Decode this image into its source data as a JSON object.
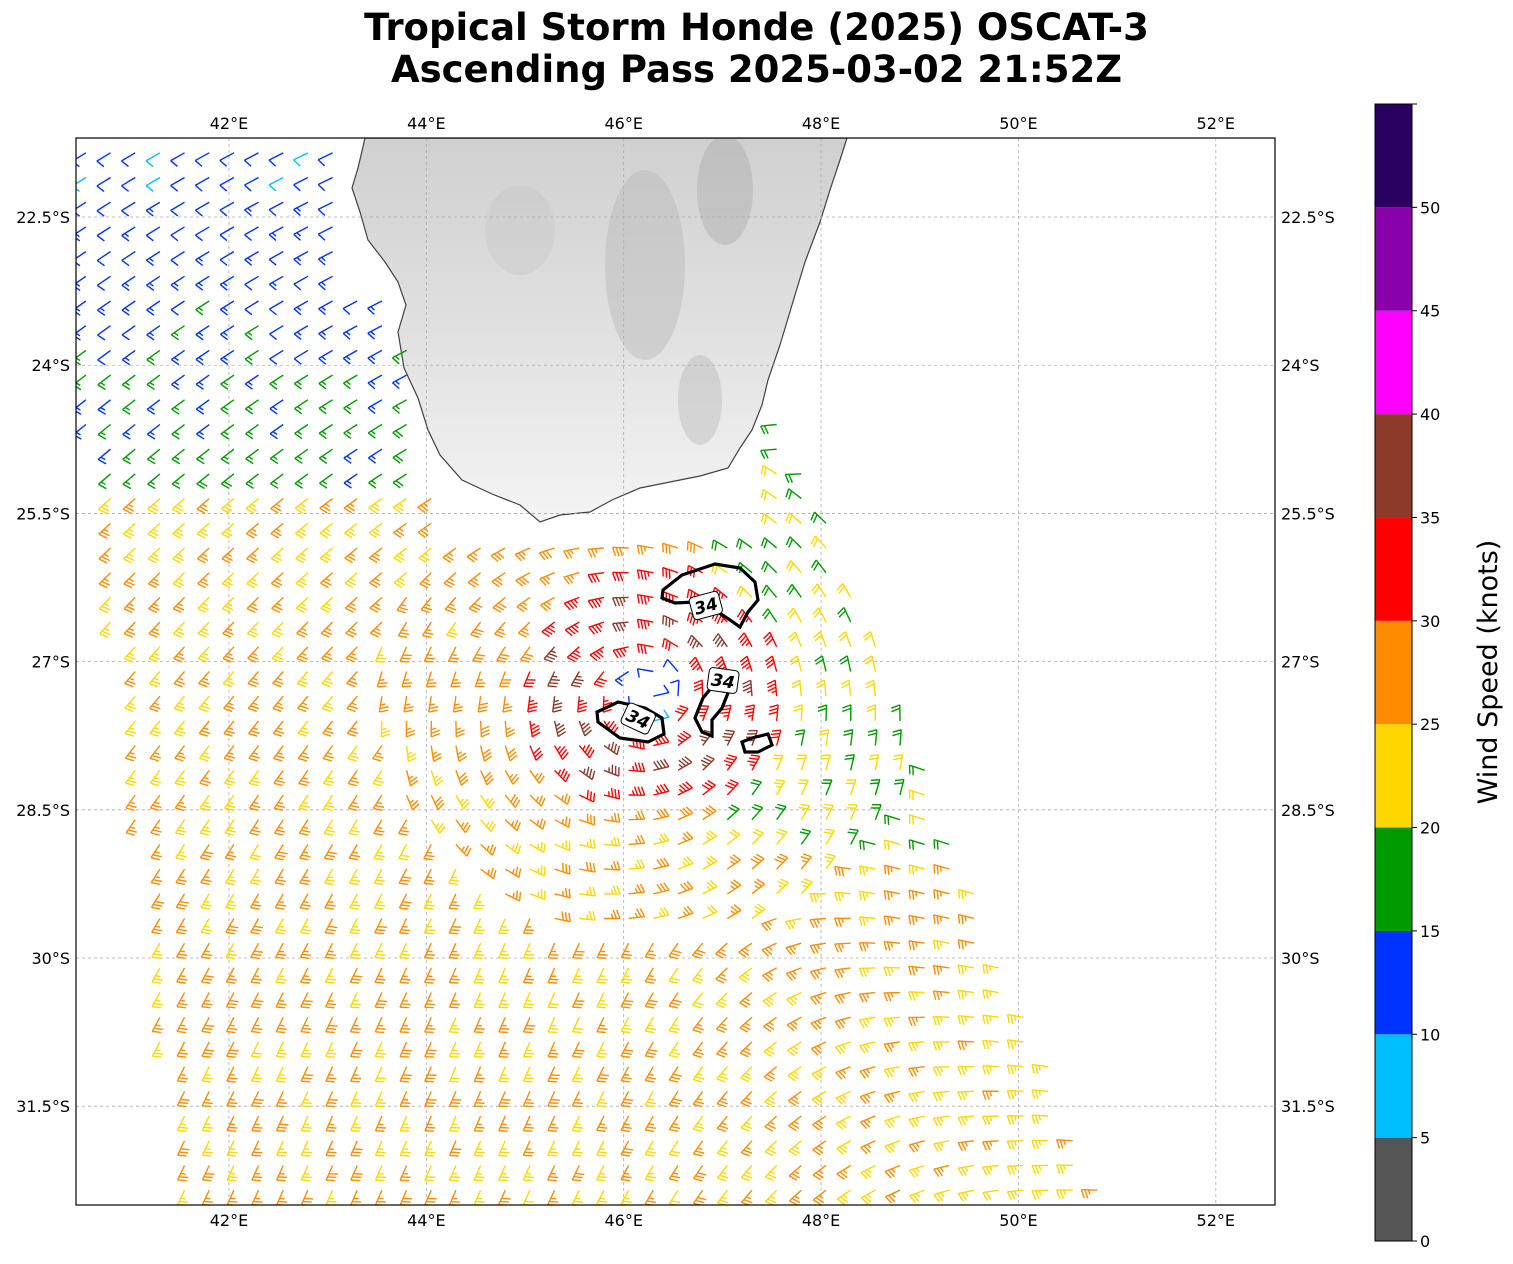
{
  "title": {
    "line1": "Tropical Storm Honde (2025) OSCAT-3",
    "line2": "Ascending Pass 2025-03-02 21:52Z"
  },
  "map": {
    "lon_range": [
      40.45,
      52.6
    ],
    "lat_range": [
      -32.5,
      -21.7
    ],
    "lon_ticks": [
      "42°E",
      "44°E",
      "46°E",
      "48°E",
      "50°E",
      "52°E"
    ],
    "lat_ticks": [
      "22.5°S",
      "24°S",
      "25.5°S",
      "27°S",
      "28.5°S",
      "30°S",
      "31.5°S"
    ],
    "land": "Madagascar (southern tip)",
    "storm_center": {
      "lon": 46.3,
      "lat": -27.3
    },
    "contour_label": "34",
    "contour_labels": [
      "34",
      "34",
      "34"
    ]
  },
  "colorbar": {
    "label": "Wind Speed (knots)",
    "ticks": [
      "0",
      "5",
      "10",
      "15",
      "20",
      "25",
      "30",
      "35",
      "40",
      "45",
      "50"
    ],
    "bins": [
      {
        "range": "0-5",
        "color": "#555555"
      },
      {
        "range": "5-10",
        "color": "#00bfff"
      },
      {
        "range": "10-15",
        "color": "#0033ff"
      },
      {
        "range": "15-20",
        "color": "#009900"
      },
      {
        "range": "20-25",
        "color": "#ffd700"
      },
      {
        "range": "25-30",
        "color": "#ff8c00"
      },
      {
        "range": "30-35",
        "color": "#ff0000"
      },
      {
        "range": "35-40",
        "color": "#8b3a2a"
      },
      {
        "range": "40-45",
        "color": "#ff00ff"
      },
      {
        "range": "45-50",
        "color": "#8800aa"
      },
      {
        "range": "50+",
        "color": "#2a0060"
      }
    ]
  }
}
